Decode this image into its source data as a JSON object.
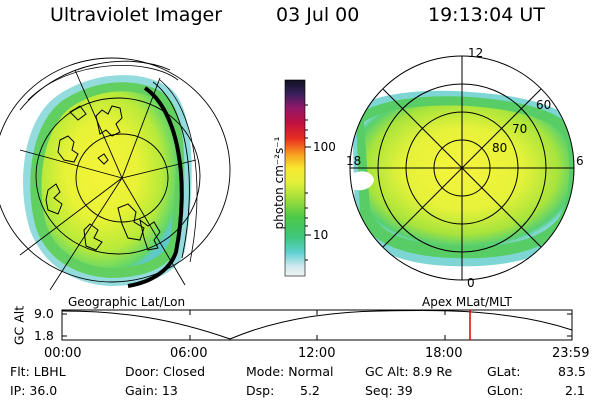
{
  "header": {
    "title": "Ultraviolet Imager",
    "date": "03 Jul 00",
    "time": "19:13:04 UT"
  },
  "colorbar": {
    "label": "photon cm⁻²s⁻¹",
    "ticks": [
      "100",
      "10"
    ]
  },
  "left_panel": {
    "subtitle": "Geographic Lat/Lon"
  },
  "right_panel": {
    "subtitle": "Apex MLat/MLT",
    "mlt_labels": {
      "top": "12",
      "bottom": "0",
      "left": "18",
      "right": "6"
    },
    "lat_labels": [
      "60",
      "70",
      "80"
    ]
  },
  "timeline": {
    "ylabel": "GC Alt",
    "yticks": [
      "9.0",
      "1.8"
    ],
    "xticks": [
      "00:00",
      "06:00",
      "12:00",
      "18:00",
      "23:59"
    ],
    "current_fraction": 0.8,
    "marker_color": "#e00000"
  },
  "footer": {
    "flt": "Flt: LBHL",
    "ip": "IP: 36.0",
    "door": "Door: Closed",
    "gain": "Gain: 13",
    "mode": "Mode: Normal",
    "dsp_label": "Dsp:",
    "dsp_value": "5.2",
    "gc_alt": "GC Alt: 8.9 Re",
    "seq": "Seq: 39",
    "glat_label": "GLat:",
    "glat_value": "83.5",
    "glon_label": "GLon:",
    "glon_value": "2.1"
  }
}
